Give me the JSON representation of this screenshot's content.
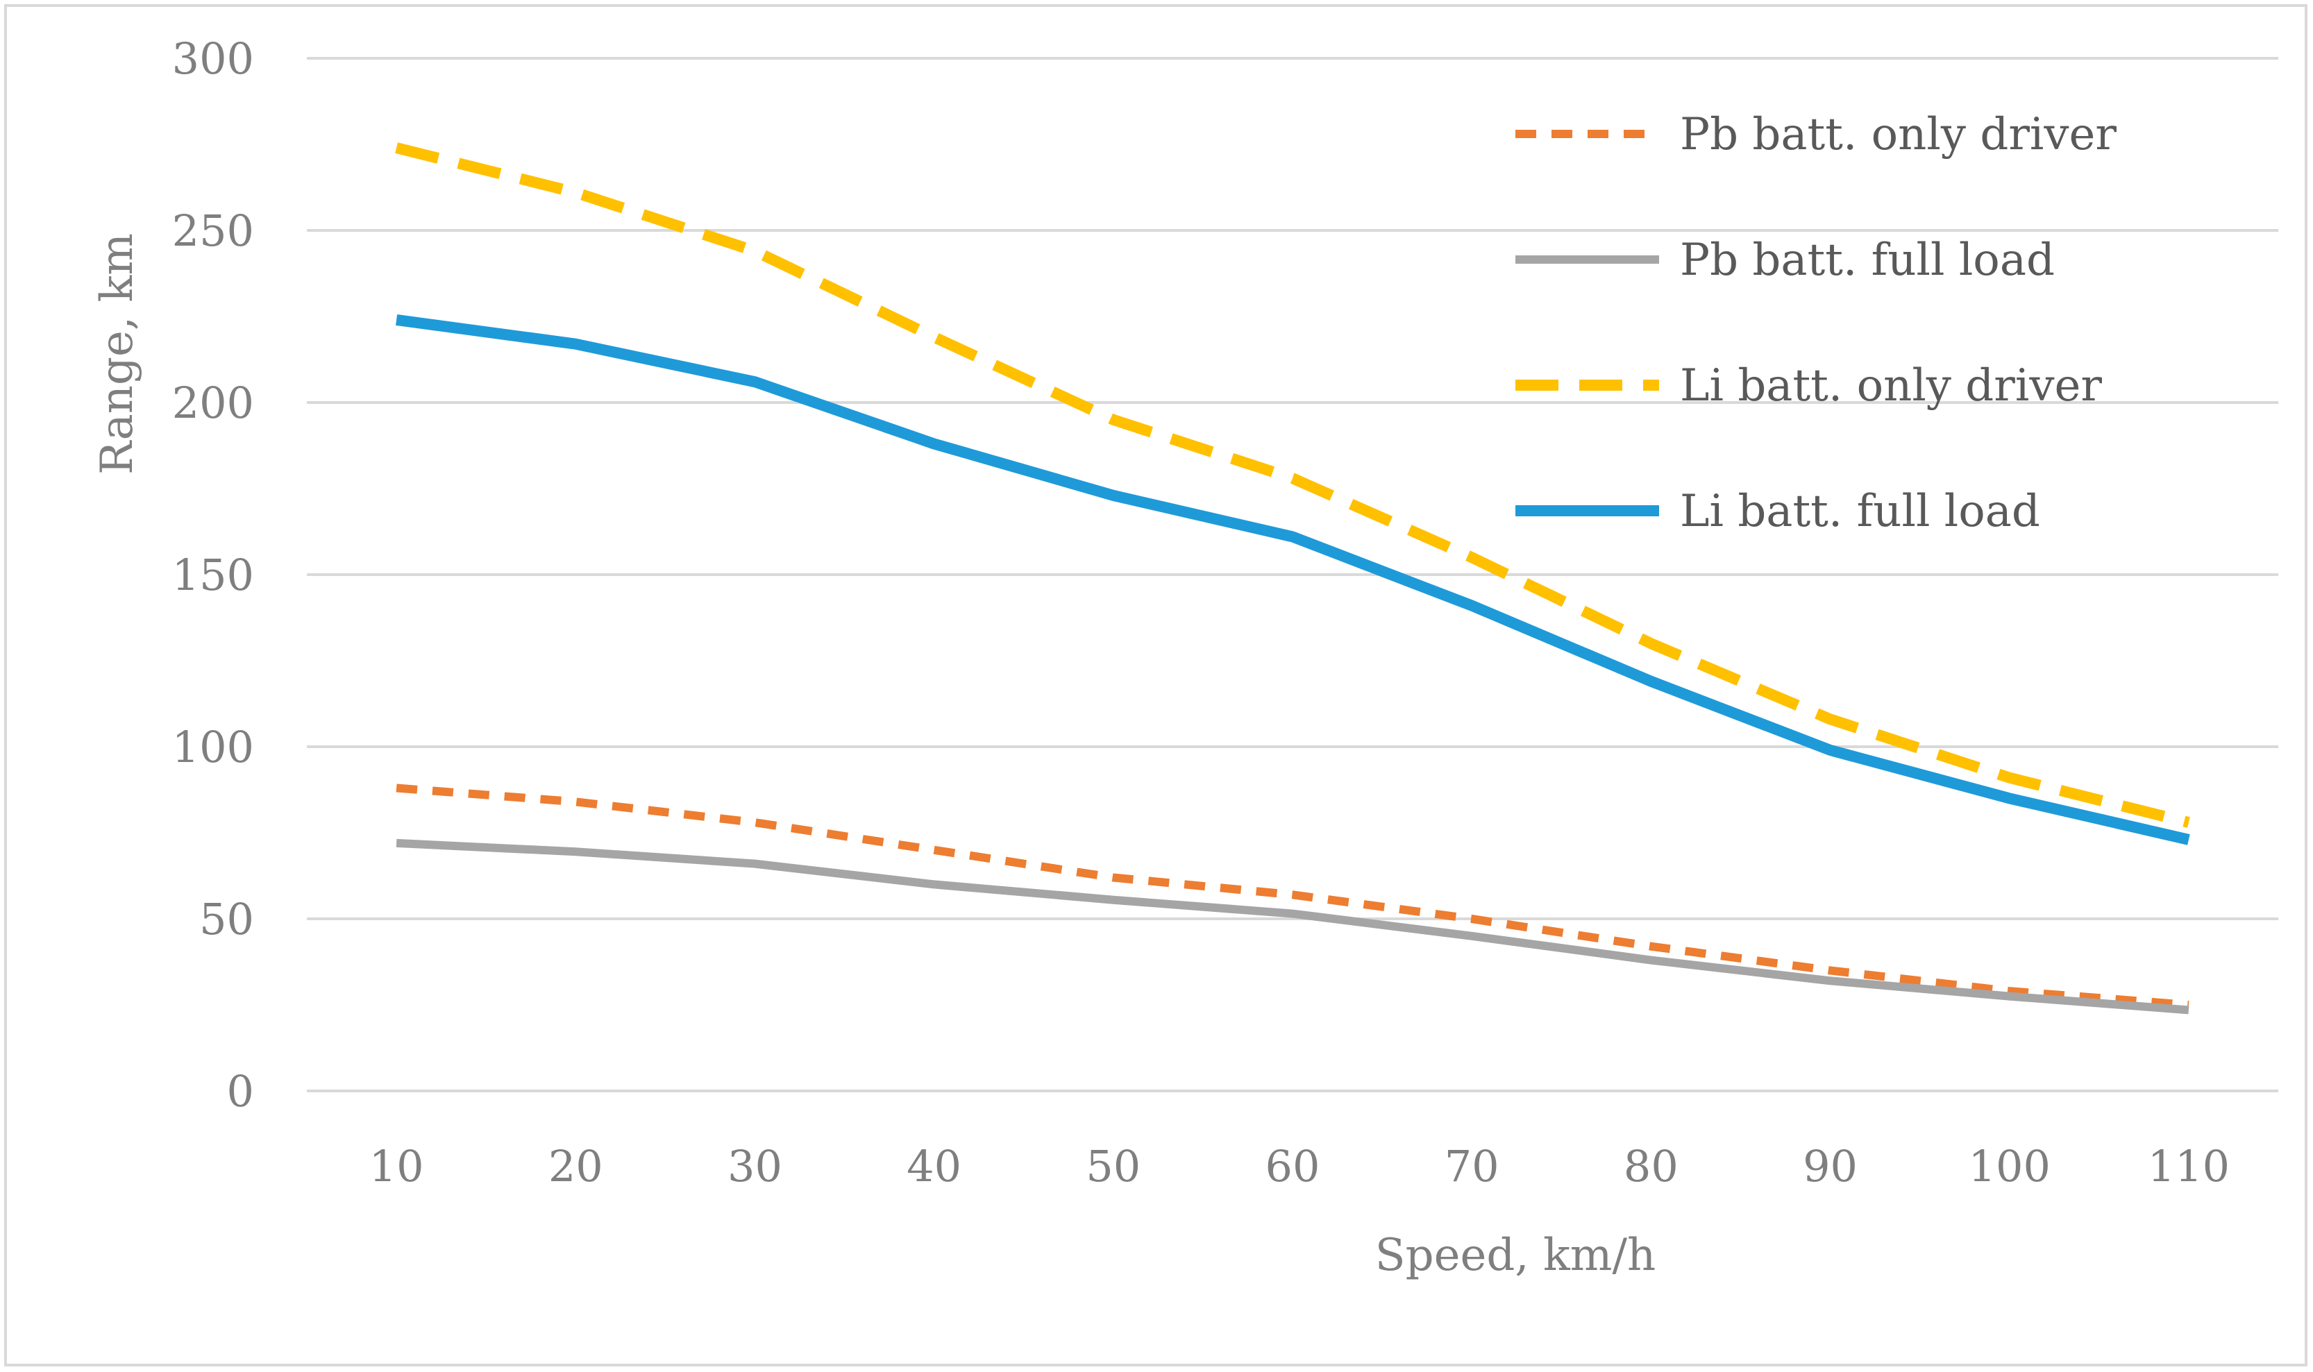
{
  "chart_data": {
    "type": "line",
    "title": "",
    "xlabel": "Speed, km/h",
    "ylabel": "Range, km",
    "categories": [
      "10",
      "20",
      "30",
      "40",
      "50",
      "60",
      "70",
      "80",
      "90",
      "100",
      "110"
    ],
    "y_ticks": [
      "0",
      "50",
      "100",
      "150",
      "200",
      "250",
      "300"
    ],
    "ylim": [
      0,
      300
    ],
    "grid": true,
    "legend_position": "top-right",
    "series": [
      {
        "name": "Pb batt. only driver",
        "color": "#ed7d31",
        "style": "short-dash",
        "values": [
          88,
          84,
          78,
          70,
          62,
          57,
          50,
          42,
          35,
          29,
          25
        ]
      },
      {
        "name": "Pb batt. full load",
        "color": "#a5a5a5",
        "style": "solid",
        "values": [
          72,
          69.5,
          66,
          60,
          55.5,
          51.5,
          45,
          38,
          32,
          27.5,
          23.5
        ]
      },
      {
        "name": "Li batt. only driver",
        "color": "#ffc000",
        "style": "long-dash",
        "values": [
          274,
          261,
          244,
          219,
          195,
          178,
          155,
          130,
          108,
          91,
          78
        ]
      },
      {
        "name": "Li batt. full load",
        "color": "#1f9ad8",
        "style": "solid",
        "values": [
          224,
          217,
          206,
          188,
          173,
          161,
          141,
          119,
          99,
          85,
          73
        ]
      }
    ]
  }
}
